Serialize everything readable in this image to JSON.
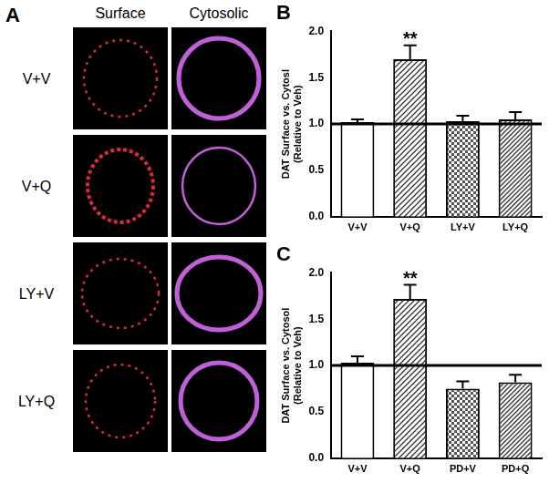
{
  "images": {
    "label": "A",
    "columns": [
      "Surface",
      "Cytosolic"
    ],
    "rows": [
      "V+V",
      "V+Q",
      "LY+V",
      "LY+Q"
    ]
  },
  "chart_data": [
    {
      "type": "bar",
      "title": "B",
      "y_label": [
        "DAT Surface vs. Cytosl",
        "(Relative to Veh)"
      ],
      "categories": [
        "V+V",
        "V+Q",
        "LY+V",
        "LY+Q"
      ],
      "values": [
        1.02,
        1.7,
        1.03,
        1.05
      ],
      "errors": [
        0.03,
        0.15,
        0.06,
        0.08
      ],
      "colors": [
        "#ffffff",
        "#ffffff",
        "#ffffff",
        "#ffffff"
      ],
      "hline": 1.0,
      "annotations": [
        {
          "text": "**",
          "category": "V+Q"
        }
      ],
      "ylim": [
        0,
        2
      ],
      "yticks": [
        {
          "value": 0,
          "label": "0.0"
        },
        {
          "value": 0.5,
          "label": "0.5"
        },
        {
          "value": 1,
          "label": "1.0"
        },
        {
          "value": 1.5,
          "label": "1.5"
        },
        {
          "value": 2,
          "label": "2.0"
        }
      ],
      "grid": false
    },
    {
      "type": "bar",
      "title": "C",
      "y_label": [
        "DAT Surface vs. Cytosol",
        "(Relative to Veh)"
      ],
      "categories": [
        "V+V",
        "V+Q",
        "PD+V",
        "PD+Q"
      ],
      "values": [
        1.03,
        1.72,
        0.75,
        0.82
      ],
      "errors": [
        0.07,
        0.15,
        0.08,
        0.08
      ],
      "colors": [
        "#ffffff",
        "#ffffff",
        "#ffffff",
        "#ffffff"
      ],
      "hline": 1.0,
      "annotations": [
        {
          "text": "**",
          "category": "V+Q"
        }
      ],
      "ylim": [
        0,
        2
      ],
      "yticks": [
        {
          "value": 0,
          "label": "0.0"
        },
        {
          "value": 0.5,
          "label": "0.5"
        },
        {
          "value": 1,
          "label": "1.0"
        },
        {
          "value": 1.5,
          "label": "1.5"
        },
        {
          "value": 2,
          "label": "2.0"
        }
      ],
      "grid": false
    }
  ]
}
